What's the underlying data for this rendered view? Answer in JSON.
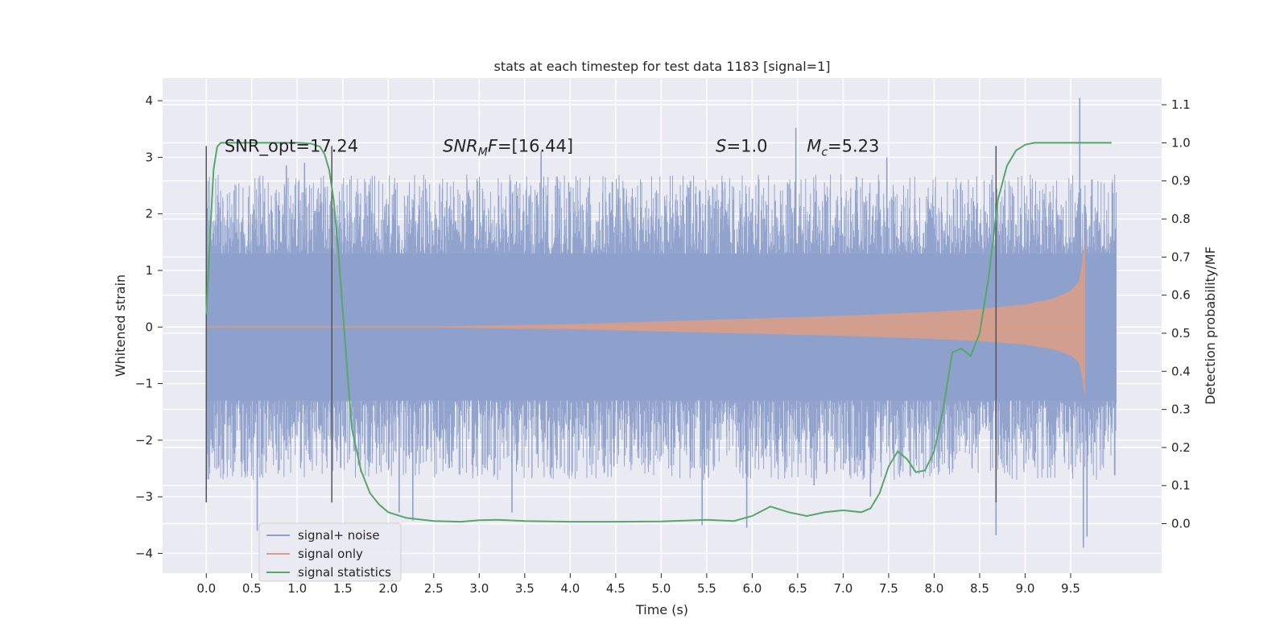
{
  "chart_data": {
    "type": "line",
    "title": "stats at each timestep for test data 1183 [signal=1]",
    "xlabel": "Time (s)",
    "ylabel": "Whitened strain",
    "ylabel_right": "Detection probability/MF",
    "xlim": [
      -0.48,
      10.5
    ],
    "ylim": [
      -4.35,
      4.4
    ],
    "ylim_right": [
      -0.13,
      1.17
    ],
    "x_ticks": [
      "0.0",
      "0.5",
      "1.0",
      "1.5",
      "2.0",
      "2.5",
      "3.0",
      "3.5",
      "4.0",
      "4.5",
      "5.0",
      "5.5",
      "6.0",
      "6.5",
      "7.0",
      "7.5",
      "8.0",
      "8.5",
      "9.0",
      "9.5"
    ],
    "x_tick_values": [
      0.0,
      0.5,
      1.0,
      1.5,
      2.0,
      2.5,
      3.0,
      3.5,
      4.0,
      4.5,
      5.0,
      5.5,
      6.0,
      6.5,
      7.0,
      7.5,
      8.0,
      8.5,
      9.0,
      9.5
    ],
    "y_ticks": [
      "4",
      "3",
      "2",
      "1",
      "0",
      "−1",
      "−2",
      "−3",
      "−4"
    ],
    "y_tick_values": [
      4,
      3,
      2,
      1,
      0,
      -1,
      -2,
      -3,
      -4
    ],
    "y_right_ticks": [
      "1.1",
      "1.0",
      "0.9",
      "0.8",
      "0.7",
      "0.6",
      "0.5",
      "0.4",
      "0.3",
      "0.2",
      "0.1",
      "0.0"
    ],
    "y_right_tick_values": [
      1.1,
      1.0,
      0.9,
      0.8,
      0.7,
      0.6,
      0.5,
      0.4,
      0.3,
      0.2,
      0.1,
      0.0
    ],
    "grid": true,
    "legend_position": "bottom-left",
    "series": [
      {
        "name": "signal+ noise",
        "color": "#8da0cb",
        "kind": "noise",
        "x_range": [
          0.0,
          10.0
        ],
        "core_band": [
          -1.3,
          1.3
        ],
        "typical_peak": [
          2.0,
          -2.0
        ],
        "spikes": [
          [
            0.56,
            -3.6
          ],
          [
            0.88,
            2.86
          ],
          [
            1.08,
            2.9
          ],
          [
            2.12,
            -3.28
          ],
          [
            2.27,
            -3.42
          ],
          [
            3.36,
            -3.28
          ],
          [
            3.68,
            3.1
          ],
          [
            5.45,
            -3.5
          ],
          [
            5.94,
            -3.55
          ],
          [
            6.48,
            3.52
          ],
          [
            6.68,
            -2.8
          ],
          [
            7.3,
            -3.0
          ],
          [
            7.48,
            3.0
          ],
          [
            8.68,
            -3.68
          ],
          [
            9.6,
            4.05
          ],
          [
            9.64,
            -3.9
          ],
          [
            9.68,
            -3.7
          ]
        ]
      },
      {
        "name": "signal only",
        "color": "#dd9d84",
        "kind": "chirp",
        "x_range": [
          0.0,
          9.66
        ],
        "envelope": [
          [
            0.0,
            0.0
          ],
          [
            2.5,
            0.01
          ],
          [
            4.0,
            0.05
          ],
          [
            5.0,
            0.1
          ],
          [
            6.0,
            0.15
          ],
          [
            7.0,
            0.2
          ],
          [
            8.0,
            0.27
          ],
          [
            8.5,
            0.32
          ],
          [
            9.0,
            0.4
          ],
          [
            9.3,
            0.5
          ],
          [
            9.5,
            0.64
          ],
          [
            9.6,
            0.82
          ],
          [
            9.66,
            1.6
          ]
        ]
      },
      {
        "name": "signal statistics",
        "color": "#55a868",
        "axis": "right",
        "x": [
          0.0,
          0.04,
          0.08,
          0.12,
          0.16,
          0.22,
          0.3,
          0.4,
          0.6,
          0.8,
          1.0,
          1.15,
          1.25,
          1.3,
          1.35,
          1.4,
          1.45,
          1.5,
          1.55,
          1.6,
          1.7,
          1.8,
          1.9,
          2.0,
          2.2,
          2.5,
          2.8,
          3.0,
          3.2,
          3.5,
          4.0,
          4.5,
          5.0,
          5.5,
          5.8,
          6.0,
          6.2,
          6.4,
          6.6,
          6.8,
          7.0,
          7.2,
          7.3,
          7.4,
          7.5,
          7.6,
          7.7,
          7.8,
          7.9,
          8.0,
          8.1,
          8.2,
          8.3,
          8.4,
          8.5,
          8.6,
          8.7,
          8.8,
          8.9,
          9.0,
          9.1,
          9.2,
          9.5,
          9.95
        ],
        "values": [
          0.55,
          0.75,
          0.93,
          0.99,
          1.0,
          1.0,
          1.0,
          1.0,
          1.0,
          1.0,
          1.0,
          0.998,
          0.99,
          0.97,
          0.93,
          0.85,
          0.72,
          0.56,
          0.4,
          0.25,
          0.14,
          0.08,
          0.05,
          0.03,
          0.015,
          0.007,
          0.005,
          0.009,
          0.01,
          0.007,
          0.005,
          0.005,
          0.006,
          0.01,
          0.007,
          0.02,
          0.045,
          0.03,
          0.02,
          0.03,
          0.035,
          0.03,
          0.04,
          0.08,
          0.15,
          0.19,
          0.17,
          0.135,
          0.14,
          0.19,
          0.3,
          0.45,
          0.46,
          0.44,
          0.5,
          0.65,
          0.85,
          0.94,
          0.98,
          0.995,
          1.0,
          1.0,
          1.0,
          1.0
        ]
      }
    ],
    "vlines": [
      0.0,
      1.38,
      8.68
    ],
    "vline_ylim": [
      -3.1,
      3.2
    ],
    "annotations": [
      {
        "x": 0.2,
        "y": 3.1,
        "text": "SNR_opt=17.24"
      },
      {
        "x": 2.6,
        "y": 3.1,
        "text": "SNR_MF=[16.44]",
        "base": "SNR",
        "sub": "M",
        "rest": "F=[16.44]"
      },
      {
        "x": 5.6,
        "y": 3.1,
        "text": "S=1.0",
        "base": "S",
        "rest": "=1.0"
      },
      {
        "x": 6.6,
        "y": 3.1,
        "text": "M_c=5.23",
        "base": "M",
        "sub": "c",
        "rest": "=5.23"
      }
    ],
    "colors": {
      "background": "#eaeaf2",
      "grid": "#ffffff",
      "vline": "#555555"
    }
  }
}
